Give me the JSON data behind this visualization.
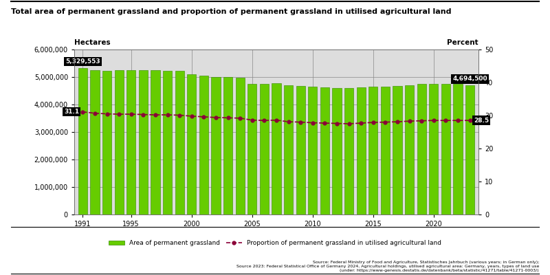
{
  "title": "Total area of permanent grassland and proportion of permanent grassland in utilised agricultural land",
  "ylabel_left": "Hectares",
  "ylabel_right": "Percent",
  "years": [
    1991,
    1992,
    1993,
    1994,
    1995,
    1996,
    1997,
    1998,
    1999,
    2000,
    2001,
    2002,
    2003,
    2004,
    2005,
    2006,
    2007,
    2008,
    2009,
    2010,
    2011,
    2012,
    2013,
    2014,
    2015,
    2016,
    2017,
    2018,
    2019,
    2020,
    2021,
    2022,
    2023
  ],
  "hectares": [
    5329553,
    5240000,
    5230000,
    5245000,
    5255000,
    5250000,
    5240000,
    5235000,
    5230000,
    5100000,
    5060000,
    5010000,
    4990000,
    4980000,
    4750000,
    4760000,
    4780000,
    4700000,
    4680000,
    4640000,
    4620000,
    4610000,
    4590000,
    4620000,
    4650000,
    4660000,
    4680000,
    4700000,
    4740000,
    4760000,
    4760000,
    4750000,
    4694500
  ],
  "percent": [
    31.1,
    30.7,
    30.5,
    30.4,
    30.4,
    30.3,
    30.2,
    30.2,
    30.1,
    29.8,
    29.6,
    29.4,
    29.3,
    29.2,
    28.6,
    28.5,
    28.6,
    28.1,
    28.0,
    27.8,
    27.7,
    27.6,
    27.5,
    27.7,
    27.9,
    28.0,
    28.1,
    28.3,
    28.4,
    28.5,
    28.5,
    28.5,
    28.5
  ],
  "bar_color": "#66cc00",
  "bar_edge_color": "#338800",
  "line_color": "#8b0038",
  "first_bar_label": "5,329,553",
  "last_bar_label": "4,694,500",
  "first_line_label": "31.1",
  "last_line_label": "28.5",
  "ylim_left": [
    0,
    6000000
  ],
  "ylim_right": [
    0,
    50
  ],
  "source_text": "Source: Federal Ministry of Food and Agriculture, Statistisches Jahrbuch (various years; in German only);\nSource 2023: Federal Statistical Office of Germany 2024, Agricultural holdings, utilised agricultural area: Germany, years, types of land use\n(under: https://www-genesis.destatis.de/datenbank/beta/statistic/41271/table/41271-0003/)",
  "legend_bar": "Area of permanent grassland",
  "legend_line": "Proportion of permanent grassland in utilised agricultural land",
  "background_color": "#ffffff",
  "plot_bg_color": "#ffffff",
  "hatch_pattern": "////",
  "bg_hatch_color": "#cccccc"
}
